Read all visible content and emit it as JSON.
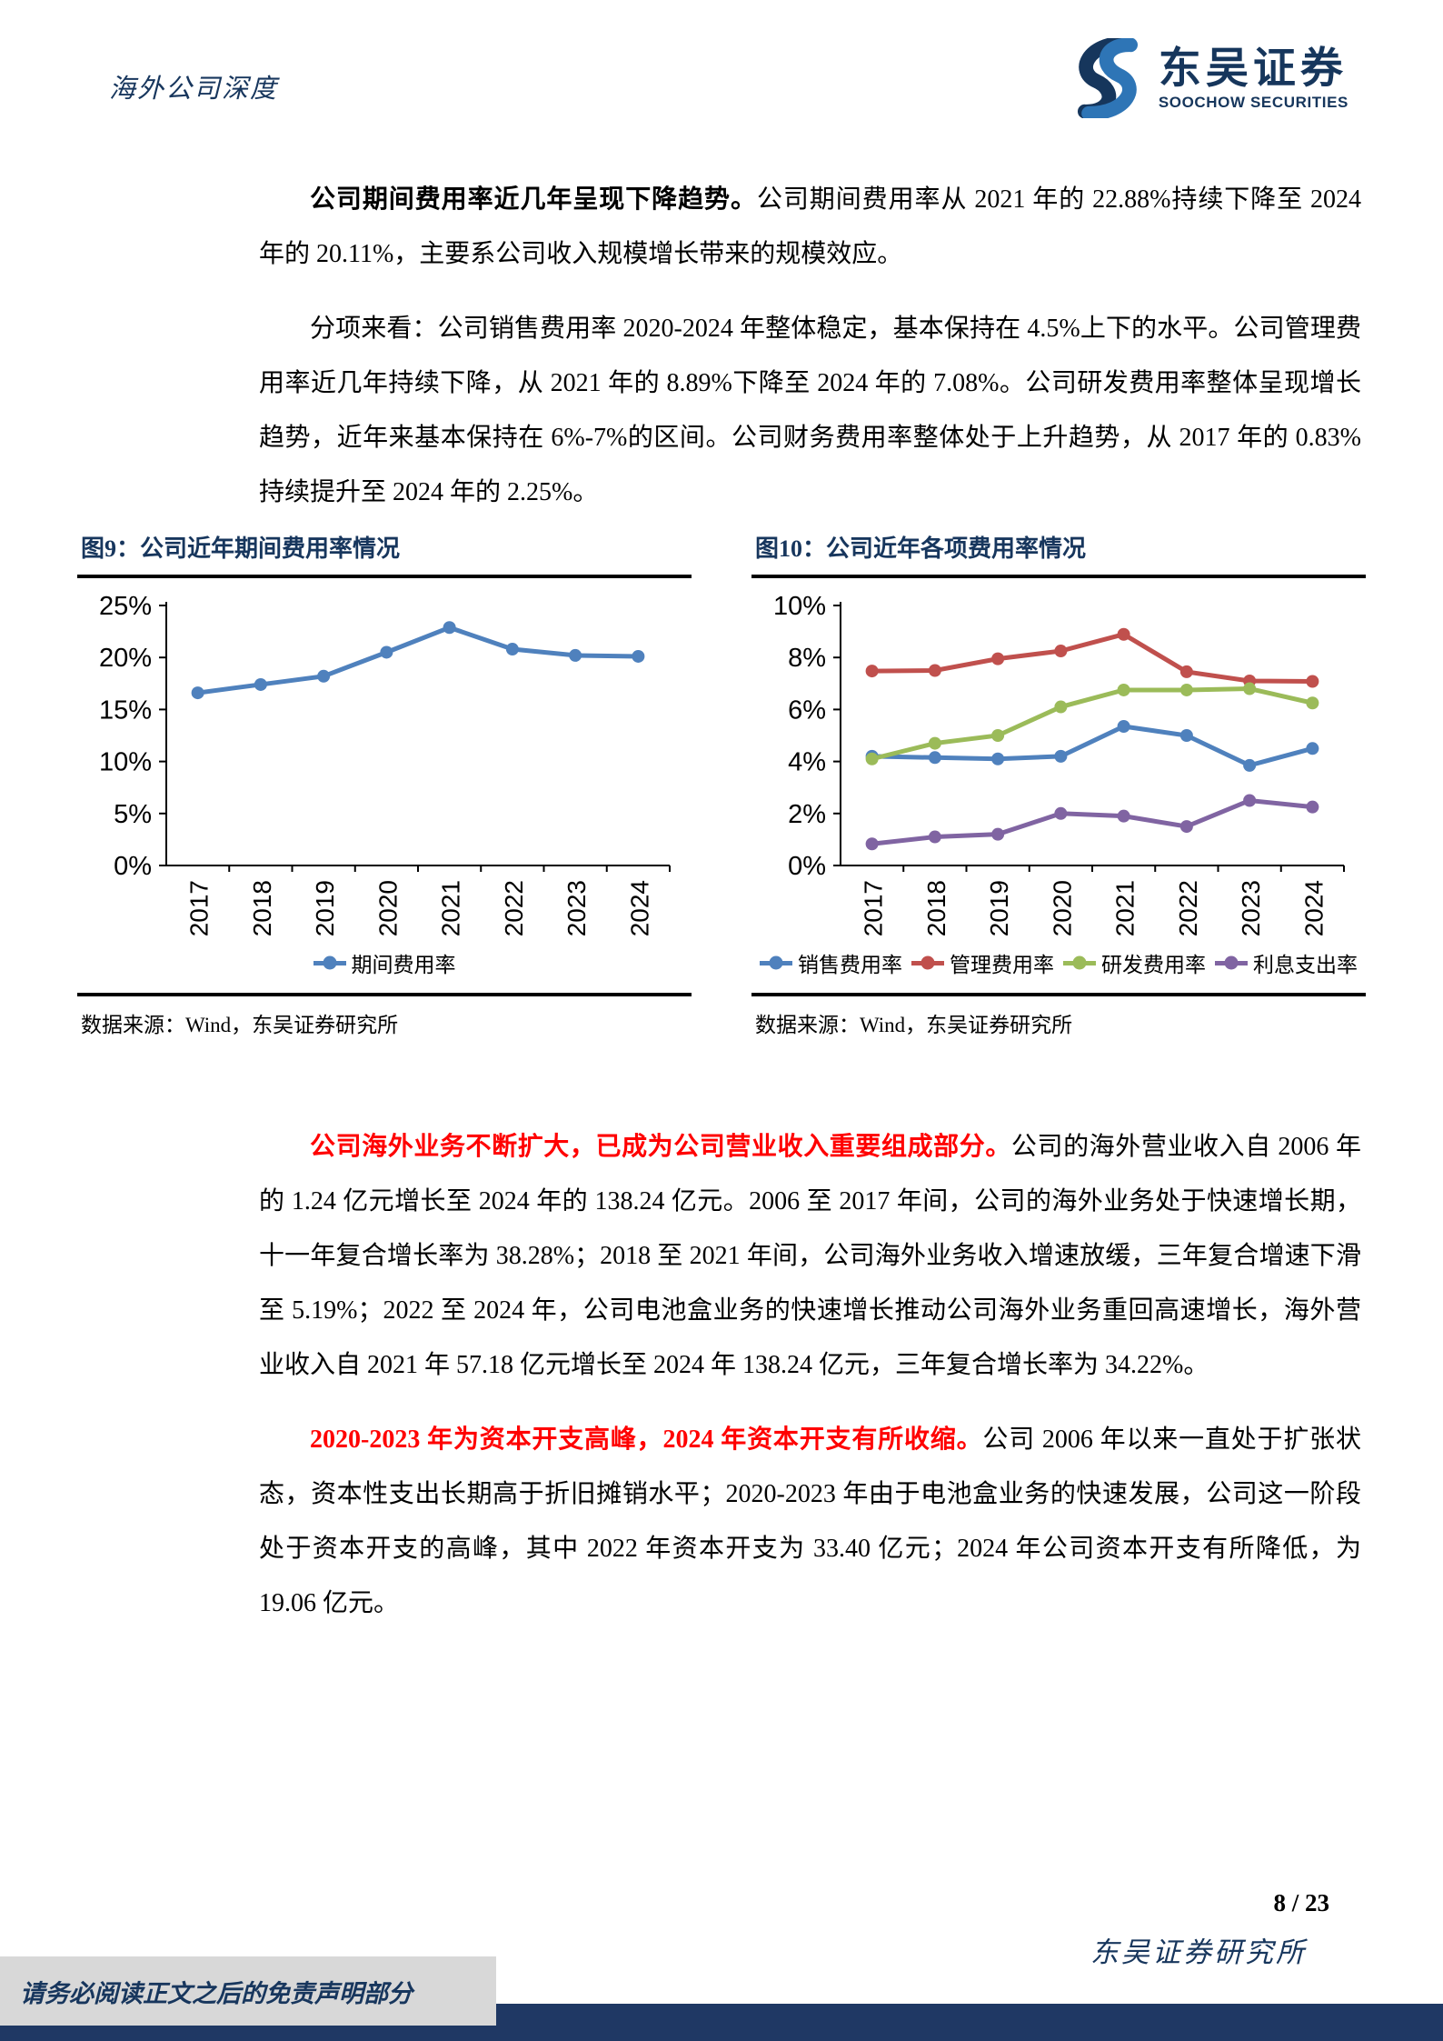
{
  "header": {
    "doc_type": "海外公司深度",
    "brand_cn": "东吴证券",
    "brand_en": "SOOCHOW SECURITIES"
  },
  "colors": {
    "navy": "#17365D",
    "logo_light_blue": "#2E75B6",
    "red_text": "#FF0000",
    "series_blue": "#4F81BD",
    "series_red": "#C0504D",
    "series_green": "#9BBB59",
    "series_purple": "#8064A2",
    "bottom_bar": "#1F3864",
    "disclaimer_bg": "#D8D8D8"
  },
  "paragraphs": [
    {
      "lead": "公司期间费用率近几年呈现下降趋势。",
      "body": "公司期间费用率从 2021 年的 22.88%持续下降至 2024 年的 20.11%，主要系公司收入规模增长带来的规模效应。"
    },
    {
      "lead": "",
      "body": "分项来看：公司销售费用率 2020-2024 年整体稳定，基本保持在 4.5%上下的水平。公司管理费用率近几年持续下降，从 2021 年的 8.89%下降至 2024 年的 7.08%。公司研发费用率整体呈现增长趋势，近年来基本保持在 6%-7%的区间。公司财务费用率整体处于上升趋势，从 2017 年的 0.83%持续提升至 2024 年的 2.25%。"
    },
    {
      "lead": "公司海外业务不断扩大，已成为公司营业收入重要组成部分。",
      "body": "公司的海外营业收入自 2006 年的 1.24 亿元增长至 2024 年的 138.24 亿元。2006 至 2017 年间，公司的海外业务处于快速增长期，十一年复合增长率为 38.28%；2018 至 2021 年间，公司海外业务收入增速放缓，三年复合增速下滑至 5.19%；2022 至 2024 年，公司电池盒业务的快速增长推动公司海外业务重回高速增长，海外营业收入自 2021 年 57.18 亿元增长至 2024 年 138.24 亿元，三年复合增长率为 34.22%。"
    },
    {
      "lead": "2020-2023 年为资本开支高峰，2024 年资本开支有所收缩。",
      "body": "公司 2006 年以来一直处于扩张状态，资本性支出长期高于折旧摊销水平；2020-2023 年由于电池盒业务的快速发展，公司这一阶段处于资本开支的高峰，其中 2022 年资本开支为 33.40 亿元；2024 年公司资本开支有所降低，为 19.06 亿元。"
    }
  ],
  "figures": [
    {
      "title": "图9：公司近年期间费用率情况",
      "source": "数据来源：Wind，东吴证券研究所"
    },
    {
      "title": "图10：公司近年各项费用率情况",
      "source": "数据来源：Wind，东吴证券研究所"
    }
  ],
  "chart_data": [
    {
      "type": "line",
      "title": "图9：公司近年期间费用率情况",
      "categories": [
        "2017",
        "2018",
        "2019",
        "2020",
        "2021",
        "2022",
        "2023",
        "2024"
      ],
      "series": [
        {
          "name": "期间费用率",
          "color": "#4F81BD",
          "values": [
            16.6,
            17.4,
            18.2,
            20.5,
            22.88,
            20.8,
            20.2,
            20.11
          ]
        }
      ],
      "xlabel": "",
      "ylabel": "",
      "ylim": [
        0,
        25
      ],
      "ytick_step": 5,
      "grid": false,
      "legend_position": "bottom"
    },
    {
      "type": "line",
      "title": "图10：公司近年各项费用率情况",
      "categories": [
        "2017",
        "2018",
        "2019",
        "2020",
        "2021",
        "2022",
        "2023",
        "2024"
      ],
      "series": [
        {
          "name": "销售费用率",
          "color": "#4F81BD",
          "values": [
            4.2,
            4.15,
            4.1,
            4.2,
            5.35,
            5.0,
            3.85,
            4.5
          ]
        },
        {
          "name": "管理费用率",
          "color": "#C0504D",
          "values": [
            7.48,
            7.5,
            7.95,
            8.25,
            8.89,
            7.45,
            7.1,
            7.08
          ]
        },
        {
          "name": "研发费用率",
          "color": "#9BBB59",
          "values": [
            4.1,
            4.7,
            5.0,
            6.1,
            6.75,
            6.75,
            6.8,
            6.25
          ]
        },
        {
          "name": "利息支出率",
          "color": "#8064A2",
          "values": [
            0.83,
            1.1,
            1.2,
            2.0,
            1.9,
            1.5,
            2.5,
            2.25
          ]
        }
      ],
      "xlabel": "",
      "ylabel": "",
      "ylim": [
        0,
        10
      ],
      "ytick_step": 2,
      "grid": false,
      "legend_position": "bottom"
    }
  ],
  "footer": {
    "page": "8 / 23",
    "institute": "东吴证券研究所",
    "disclaimer": "请务必阅读正文之后的免责声明部分"
  }
}
